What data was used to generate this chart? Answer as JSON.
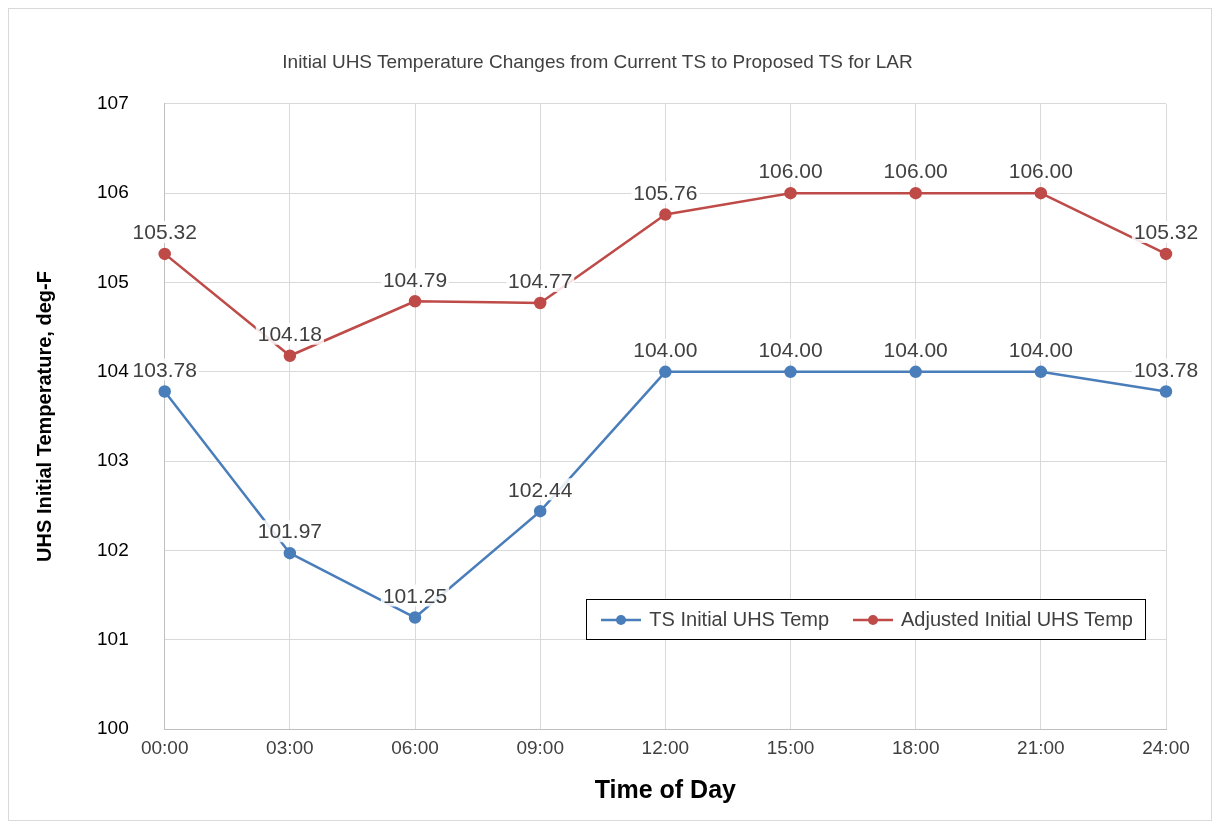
{
  "chart_data": {
    "type": "line",
    "title": "Initial UHS Temperature Changes from Current TS to Proposed TS for LAR",
    "xlabel": "Time of Day",
    "ylabel": "UHS Initial Temperature, deg-F",
    "categories": [
      "00:00",
      "03:00",
      "06:00",
      "09:00",
      "12:00",
      "15:00",
      "18:00",
      "21:00",
      "24:00"
    ],
    "series": [
      {
        "name": "TS Initial UHS Temp",
        "color": "#4a7ebb",
        "values": [
          103.78,
          101.97,
          101.25,
          102.44,
          104.0,
          104.0,
          104.0,
          104.0,
          103.78
        ],
        "value_labels": [
          "103.78",
          "101.97",
          "101.25",
          "102.44",
          "104.00",
          "104.00",
          "104.00",
          "104.00",
          "103.78"
        ]
      },
      {
        "name": "Adjusted Initial UHS Temp",
        "color": "#be4b48",
        "values": [
          105.32,
          104.18,
          104.79,
          104.77,
          105.76,
          106.0,
          106.0,
          106.0,
          105.32
        ],
        "value_labels": [
          "105.32",
          "104.18",
          "104.79",
          "104.77",
          "105.76",
          "106.00",
          "106.00",
          "106.00",
          "105.32"
        ]
      }
    ],
    "ylim": [
      100,
      107
    ],
    "yticks": [
      100,
      101,
      102,
      103,
      104,
      105,
      106,
      107
    ],
    "grid": true,
    "legend": "bottom right",
    "marker": "circle",
    "line_style": "solid"
  }
}
